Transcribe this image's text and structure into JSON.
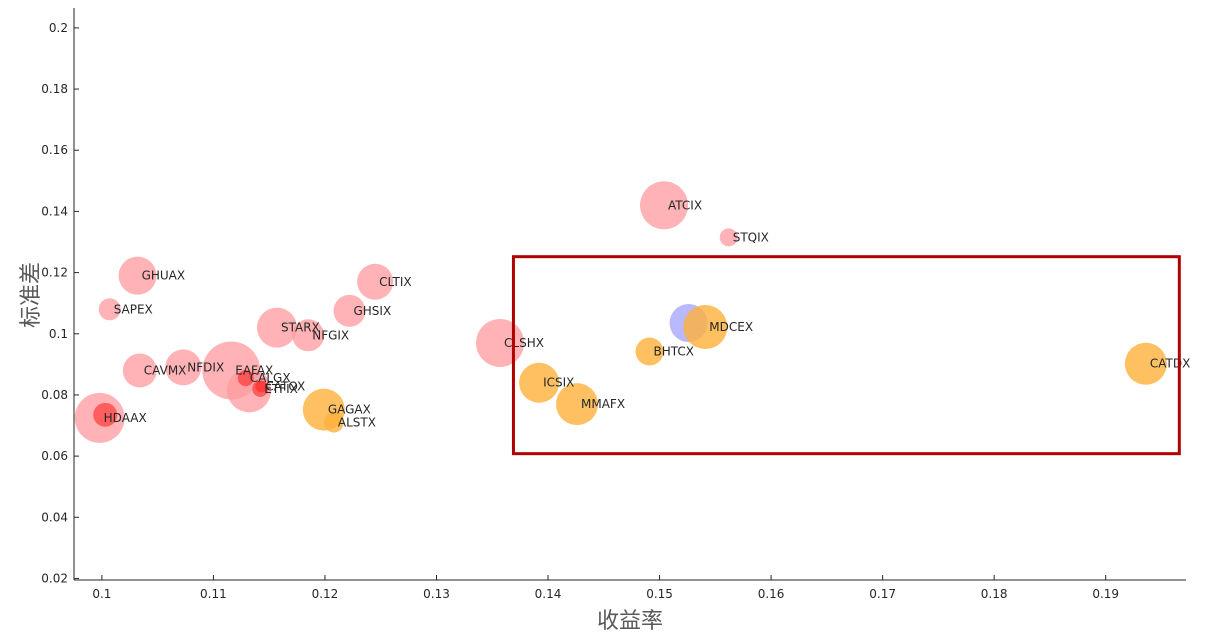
{
  "chart_data": {
    "type": "scatter",
    "xlabel": "收益率",
    "ylabel": "标准差",
    "xlim": [
      0.0975,
      0.1972
    ],
    "ylim": [
      0.0195,
      0.2065
    ],
    "xticks": [
      0.1,
      0.11,
      0.12,
      0.13,
      0.14,
      0.15,
      0.16,
      0.17,
      0.18,
      0.19
    ],
    "xtick_labels": [
      "0.1",
      "0.11",
      "0.12",
      "0.13",
      "0.14",
      "0.15",
      "0.16",
      "0.17",
      "0.18",
      "0.19"
    ],
    "yticks": [
      0.02,
      0.04,
      0.06,
      0.08,
      0.1,
      0.12,
      0.14,
      0.16,
      0.18,
      0.2
    ],
    "ytick_labels": [
      "0.02",
      "0.04",
      "0.06",
      "0.08",
      "0.1",
      "0.12",
      "0.14",
      "0.16",
      "0.18",
      "0.2"
    ],
    "grid": false,
    "colors": {
      "pink": "#ff9a9e",
      "red": "#ff2424",
      "orange": "#ffb03b",
      "blue": "#9b9bff",
      "highlight_box": "#b00000"
    },
    "points": [
      {
        "label": "SAPEX",
        "x": 0.1007,
        "y": 0.108,
        "size": 11,
        "color": "pink"
      },
      {
        "label": "GHUAX",
        "x": 0.1032,
        "y": 0.119,
        "size": 19,
        "color": "pink"
      },
      {
        "label": "CAVMX",
        "x": 0.1034,
        "y": 0.088,
        "size": 17,
        "color": "pink"
      },
      {
        "label": "HDAAX",
        "x": 0.0998,
        "y": 0.0725,
        "size": 25,
        "color": "pink"
      },
      {
        "label": "",
        "x": 0.1003,
        "y": 0.0735,
        "size": 12,
        "color": "red"
      },
      {
        "label": "NFDIX",
        "x": 0.1073,
        "y": 0.089,
        "size": 18,
        "color": "pink"
      },
      {
        "label": "EAFAX",
        "x": 0.1116,
        "y": 0.088,
        "size": 29,
        "color": "pink"
      },
      {
        "label": "",
        "x": 0.1132,
        "y": 0.0815,
        "size": 22,
        "color": "pink"
      },
      {
        "label": "CALGX",
        "x": 0.1129,
        "y": 0.0855,
        "size": 8,
        "color": "red"
      },
      {
        "label": "ETFIX",
        "x": 0.1142,
        "y": 0.082,
        "size": 8,
        "color": "red"
      },
      {
        "label": "CATOX",
        "x": 0.1143,
        "y": 0.0828,
        "size": 6,
        "color": "red"
      },
      {
        "label": "STARX",
        "x": 0.1157,
        "y": 0.102,
        "size": 20,
        "color": "pink"
      },
      {
        "label": "NFGIX",
        "x": 0.1185,
        "y": 0.0995,
        "size": 16,
        "color": "pink"
      },
      {
        "label": "GHSIX",
        "x": 0.1222,
        "y": 0.1075,
        "size": 16,
        "color": "pink"
      },
      {
        "label": "CLTIX",
        "x": 0.1245,
        "y": 0.117,
        "size": 18,
        "color": "pink"
      },
      {
        "label": "GAGAX",
        "x": 0.1199,
        "y": 0.0752,
        "size": 21,
        "color": "orange"
      },
      {
        "label": "ALSTX",
        "x": 0.1208,
        "y": 0.071,
        "size": 10,
        "color": "orange"
      },
      {
        "label": "CLSHX",
        "x": 0.1357,
        "y": 0.097,
        "size": 24,
        "color": "pink"
      },
      {
        "label": "ATCIX",
        "x": 0.1504,
        "y": 0.142,
        "size": 24,
        "color": "pink"
      },
      {
        "label": "STQIX",
        "x": 0.1562,
        "y": 0.1315,
        "size": 9,
        "color": "pink"
      },
      {
        "label": "ICSIX",
        "x": 0.1392,
        "y": 0.084,
        "size": 20,
        "color": "orange"
      },
      {
        "label": "MMAFX",
        "x": 0.1426,
        "y": 0.077,
        "size": 21,
        "color": "orange"
      },
      {
        "label": "BHTCX",
        "x": 0.1491,
        "y": 0.0942,
        "size": 14,
        "color": "orange"
      },
      {
        "label": "",
        "x": 0.1526,
        "y": 0.1035,
        "size": 19,
        "color": "blue"
      },
      {
        "label": "MDCEX",
        "x": 0.1541,
        "y": 0.1022,
        "size": 22,
        "color": "orange"
      },
      {
        "label": "CATDX",
        "x": 0.1936,
        "y": 0.0902,
        "size": 21,
        "color": "orange"
      }
    ],
    "highlight_region": {
      "x_range": [
        0.1369,
        0.1966
      ],
      "y_range": [
        0.0608,
        0.1252
      ]
    }
  }
}
